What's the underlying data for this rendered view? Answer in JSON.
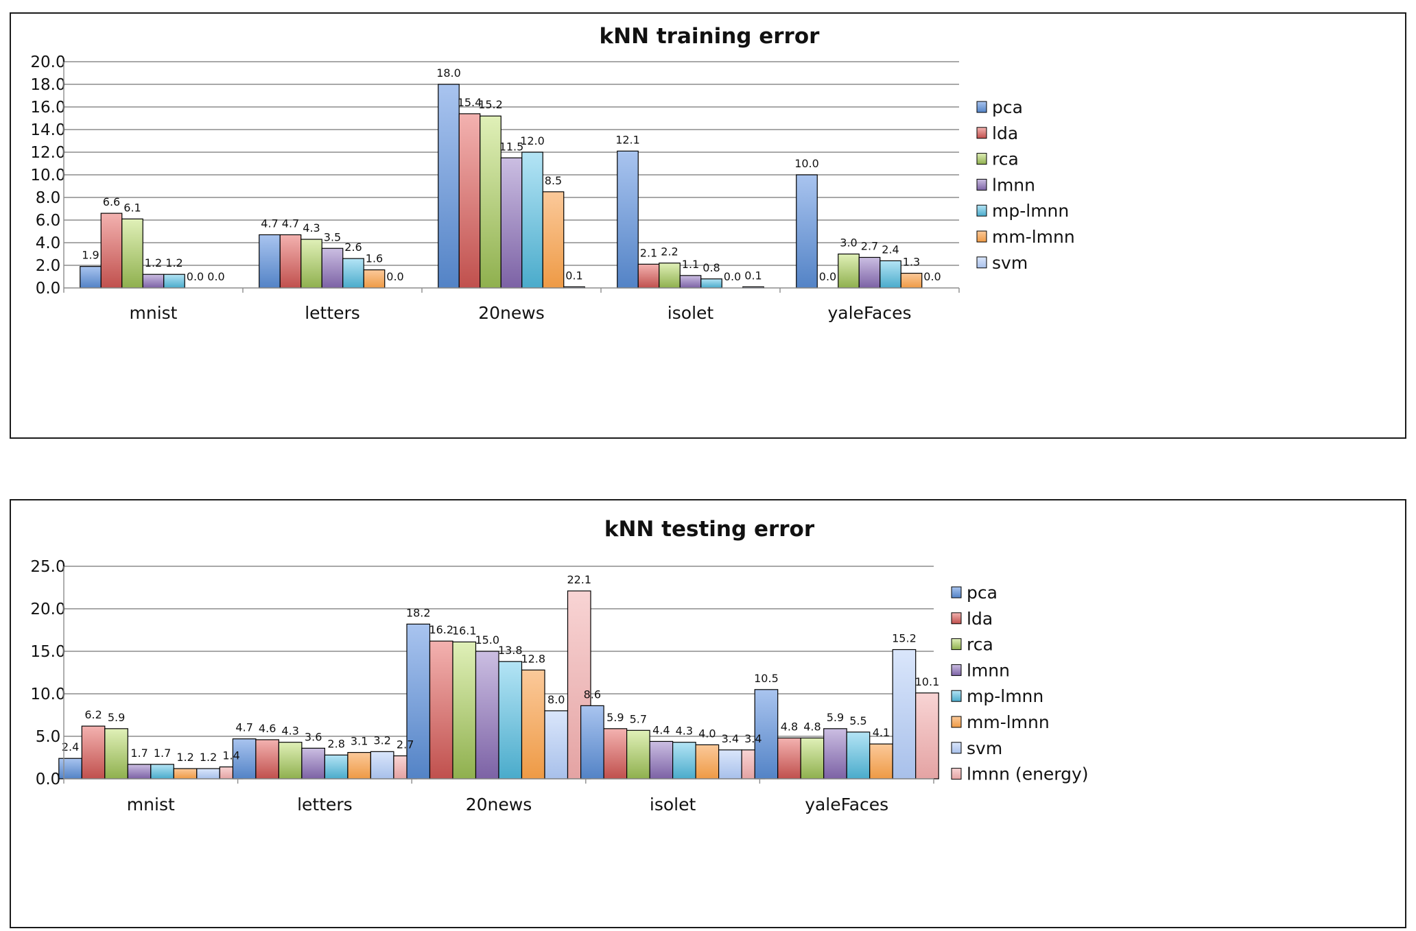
{
  "colors": {
    "pca": [
      "#a9c4ef",
      "#5383c6"
    ],
    "lda": [
      "#f3b2b0",
      "#c0504d"
    ],
    "rca": [
      "#e0f0b8",
      "#8fb04e"
    ],
    "lmnn": [
      "#cbbee2",
      "#7c62a5"
    ],
    "mp-lmnn": [
      "#b4e4f5",
      "#4aabcb"
    ],
    "mm-lmnn": [
      "#fbc99a",
      "#ee9a45"
    ],
    "svm": [
      "#dae6fb",
      "#a8c0ea"
    ],
    "lmnn (energy)": [
      "#f8d4d4",
      "#e4a3a3"
    ]
  },
  "chart_data": [
    {
      "type": "bar",
      "title": "kNN training error",
      "categories": [
        "mnist",
        "letters",
        "20news",
        "isolet",
        "yaleFaces"
      ],
      "ylim": [
        0,
        20
      ],
      "yticks": [
        "0.0",
        "2.0",
        "4.0",
        "6.0",
        "8.0",
        "10.0",
        "12.0",
        "14.0",
        "16.0",
        "18.0",
        "20.0"
      ],
      "grid": true,
      "legend_position": "right",
      "series": [
        {
          "name": "pca",
          "values": [
            1.9,
            4.7,
            18.0,
            12.1,
            10.0
          ],
          "labels": [
            "1.9",
            "4.7",
            "18.0",
            "12.1",
            "10.0"
          ]
        },
        {
          "name": "lda",
          "values": [
            6.6,
            4.7,
            15.4,
            2.1,
            0.0
          ],
          "labels": [
            "6.6",
            "4.7",
            "15.4",
            "2.1",
            "0.0"
          ]
        },
        {
          "name": "rca",
          "values": [
            6.1,
            4.3,
            15.2,
            2.2,
            3.0
          ],
          "labels": [
            "6.1",
            "4.3",
            "15.2",
            "2.2",
            "3.0"
          ]
        },
        {
          "name": "lmnn",
          "values": [
            1.2,
            3.5,
            11.5,
            1.1,
            2.7
          ],
          "labels": [
            "1.2",
            "3.5",
            "11.5",
            "1.1",
            "2.7"
          ]
        },
        {
          "name": "mp-lmnn",
          "values": [
            1.2,
            2.6,
            12.0,
            0.8,
            2.4
          ],
          "labels": [
            "1.2",
            "2.6",
            "12.0",
            "0.8",
            "2.4"
          ]
        },
        {
          "name": "mm-lmnn",
          "values": [
            0.0,
            1.6,
            8.5,
            0.0,
            1.3
          ],
          "labels": [
            "0.0",
            "1.6",
            "8.5",
            "0.0",
            "1.3"
          ]
        },
        {
          "name": "svm",
          "values": [
            0.0,
            0.0,
            0.1,
            0.1,
            0.0
          ],
          "labels": [
            "0.0",
            "0.0",
            "0.1",
            "0.1",
            "0.0"
          ]
        }
      ]
    },
    {
      "type": "bar",
      "title": "kNN testing error",
      "categories": [
        "mnist",
        "letters",
        "20news",
        "isolet",
        "yaleFaces"
      ],
      "ylim": [
        0,
        25
      ],
      "yticks": [
        "0.0",
        "5.0",
        "10.0",
        "15.0",
        "20.0",
        "25.0"
      ],
      "grid": true,
      "legend_position": "right",
      "series": [
        {
          "name": "pca",
          "values": [
            2.4,
            4.7,
            18.2,
            8.6,
            10.5
          ],
          "labels": [
            "2.4",
            "4.7",
            "18.2",
            "8.6",
            "10.5"
          ]
        },
        {
          "name": "lda",
          "values": [
            6.2,
            4.6,
            16.2,
            5.9,
            4.8
          ],
          "labels": [
            "6.2",
            "4.6",
            "16.2",
            "5.9",
            "4.8"
          ]
        },
        {
          "name": "rca",
          "values": [
            5.9,
            4.3,
            16.1,
            5.7,
            4.8
          ],
          "labels": [
            "5.9",
            "4.3",
            "16.1",
            "5.7",
            "4.8"
          ]
        },
        {
          "name": "lmnn",
          "values": [
            1.7,
            3.6,
            15.0,
            4.4,
            5.9
          ],
          "labels": [
            "1.7",
            "3.6",
            "15.0",
            "4.4",
            "5.9"
          ]
        },
        {
          "name": "mp-lmnn",
          "values": [
            1.7,
            2.8,
            13.8,
            4.3,
            5.5
          ],
          "labels": [
            "1.7",
            "2.8",
            "13.8",
            "4.3",
            "5.5"
          ]
        },
        {
          "name": "mm-lmnn",
          "values": [
            1.2,
            3.1,
            12.8,
            4.0,
            4.1
          ],
          "labels": [
            "1.2",
            "3.1",
            "12.8",
            "4.0",
            "4.1"
          ]
        },
        {
          "name": "svm",
          "values": [
            1.2,
            3.2,
            8.0,
            3.4,
            15.2
          ],
          "labels": [
            "1.2",
            "3.2",
            "8.0",
            "3.4",
            "15.2"
          ]
        },
        {
          "name": "lmnn (energy)",
          "values": [
            1.4,
            2.7,
            22.1,
            3.4,
            10.1
          ],
          "labels": [
            "1.4",
            "2.7",
            "22.1",
            "3.4",
            "10.1"
          ]
        }
      ]
    }
  ]
}
